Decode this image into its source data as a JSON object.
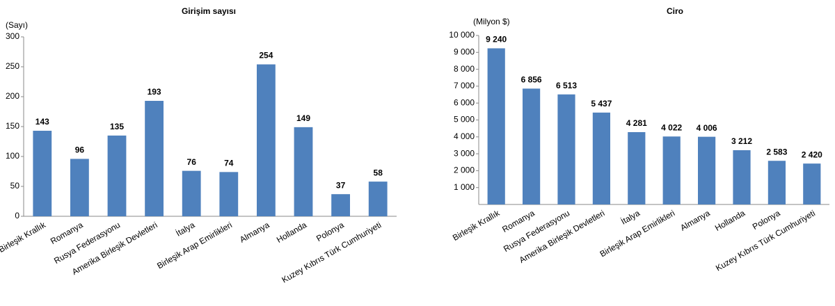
{
  "chart_data": [
    {
      "type": "bar",
      "title": "Girişim sayısı",
      "y_label": "(Sayı)",
      "categories": [
        "Birleşik Krallık",
        "Romanya",
        "Rusya Federasyonu",
        "Amerika Birleşik Devletleri",
        "İtalya",
        "Birleşik Arap Emirlikleri",
        "Almanya",
        "Hollanda",
        "Polonya",
        "Kuzey Kıbrıs Türk Cumhuriyeti"
      ],
      "values": [
        143,
        96,
        135,
        193,
        76,
        74,
        254,
        149,
        37,
        58
      ],
      "color": "#4f81bd",
      "ylim": [
        0,
        300
      ],
      "yticks": [
        0,
        50,
        100,
        150,
        200,
        250,
        300
      ],
      "grid": false
    },
    {
      "type": "bar",
      "title": "Ciro",
      "y_label": "(Milyon $)",
      "categories": [
        "Birleşik Krallık",
        "Romanya",
        "Rusya Federasyonu",
        "Amerika Birleşik Devletleri",
        "İtalya",
        "Birleşik Arap Emirlikleri",
        "Almanya",
        "Hollanda",
        "Polonya",
        "Kuzey Kıbrıs Türk Cumhuriyeti"
      ],
      "values": [
        9240,
        6856,
        6513,
        5437,
        4281,
        4022,
        4006,
        3212,
        2583,
        2420
      ],
      "value_labels": [
        "9 240",
        "6 856",
        "6 513",
        "5 437",
        "4 281",
        "4 022",
        "4 006",
        "3 212",
        "2 583",
        "2 420"
      ],
      "color": "#4f81bd",
      "ylim": [
        0,
        10000
      ],
      "yticks": [
        {
          "value": 1000,
          "label": "1 000"
        },
        {
          "value": 2000,
          "label": "2 000"
        },
        {
          "value": 3000,
          "label": "3 000"
        },
        {
          "value": 4000,
          "label": "4 000"
        },
        {
          "value": 5000,
          "label": "5 000"
        },
        {
          "value": 6000,
          "label": "6 000"
        },
        {
          "value": 7000,
          "label": "7 000"
        },
        {
          "value": 8000,
          "label": "8 000"
        },
        {
          "value": 9000,
          "label": "9 000"
        },
        {
          "value": 10000,
          "label": "10 000"
        }
      ],
      "grid": false
    }
  ]
}
